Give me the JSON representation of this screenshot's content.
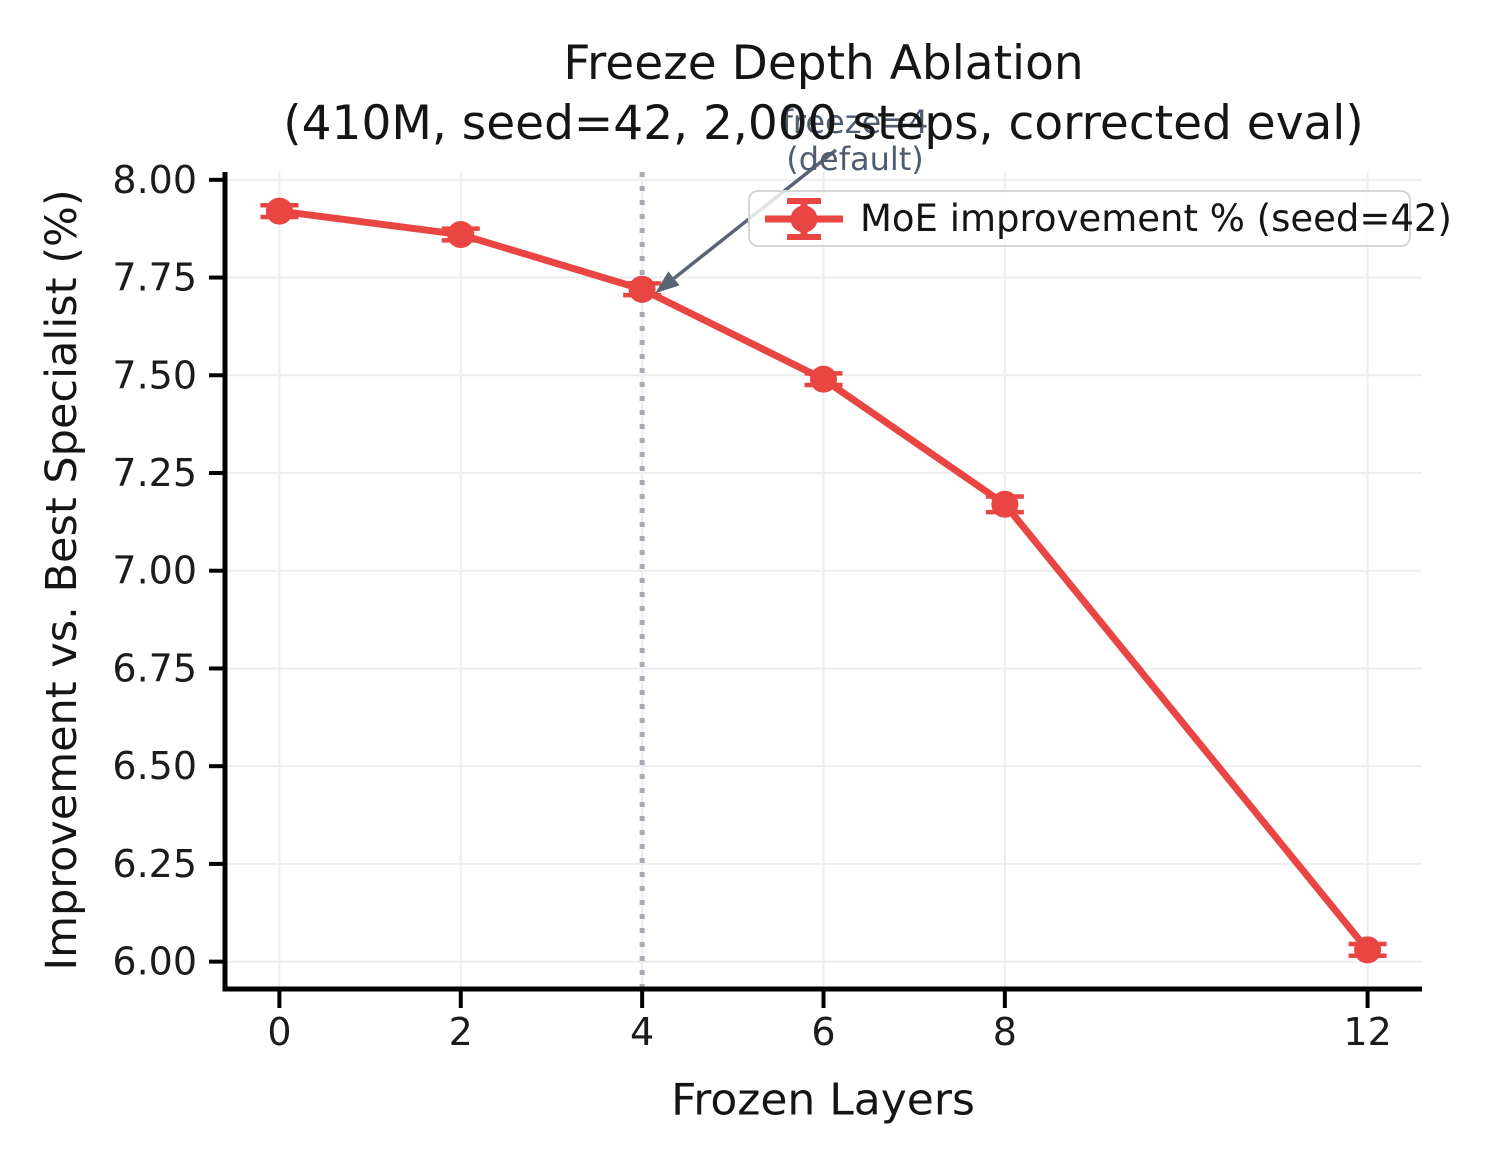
{
  "colors": {
    "line": "#e94542",
    "vline": "#a6abb6",
    "annotation": "#4f5c70",
    "arrow": "#5a6474",
    "grid": "#eeeef0",
    "axis": "#1c1c1c",
    "legend_border": "#d6d6d6"
  },
  "chart_data": {
    "type": "line",
    "title": "Freeze Depth Ablation",
    "subtitle": "(410M, seed=42, 2,000 steps, corrected eval)",
    "xlabel": "Frozen Layers",
    "ylabel": "Improvement vs. Best Specialist (%)",
    "x": [
      0,
      2,
      4,
      6,
      8,
      12
    ],
    "series": [
      {
        "name": "MoE improvement % (seed=42)",
        "values": [
          7.92,
          7.86,
          7.72,
          7.49,
          7.17,
          6.03
        ],
        "yerr": [
          0.015,
          0.015,
          0.015,
          0.015,
          0.02,
          0.015
        ],
        "color": "#e94542",
        "marker": "circle"
      }
    ],
    "xticks": [
      0,
      2,
      4,
      6,
      8,
      12
    ],
    "ytick_labels": [
      "8.00",
      "7.75",
      "7.50",
      "7.25",
      "7.00",
      "6.75",
      "6.50",
      "6.25",
      "6.00"
    ],
    "xlim": [
      -0.6,
      12.6
    ],
    "ylim": [
      5.93,
      8.02
    ],
    "grid": true,
    "legend": {
      "position": "upper right",
      "entries": [
        "MoE improvement % (seed=42)"
      ]
    },
    "vline": {
      "x": 4,
      "style": "dotted"
    },
    "annotation": {
      "line1": "freeze=4",
      "line2": "(default)",
      "target_x": 4,
      "target_y": 7.72
    }
  }
}
